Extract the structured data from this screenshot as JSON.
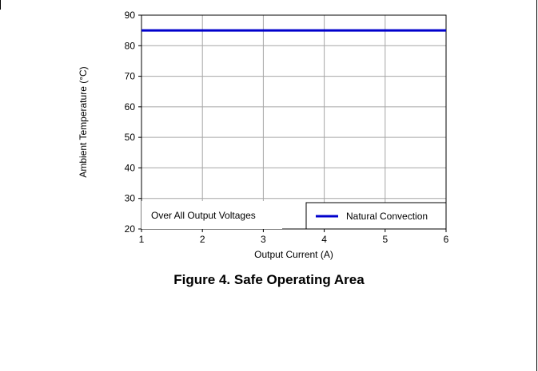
{
  "figure": {
    "caption": "Figure 4. Safe Operating Area"
  },
  "chart_data": {
    "type": "line",
    "xlabel": "Output Current (A)",
    "ylabel": "Ambient Temperature (°C)",
    "xlim": [
      1,
      6
    ],
    "ylim": [
      20,
      90
    ],
    "x_ticks": [
      1,
      2,
      3,
      4,
      5,
      6
    ],
    "y_ticks": [
      20,
      30,
      40,
      50,
      60,
      70,
      80,
      90
    ],
    "grid": true,
    "annotation": "Over All Output Voltages",
    "legend": {
      "position": "bottom-right"
    },
    "series": [
      {
        "name": "Natural Convection",
        "color": "#0000cc",
        "x": [
          1,
          6
        ],
        "y": [
          85,
          85
        ]
      }
    ]
  }
}
